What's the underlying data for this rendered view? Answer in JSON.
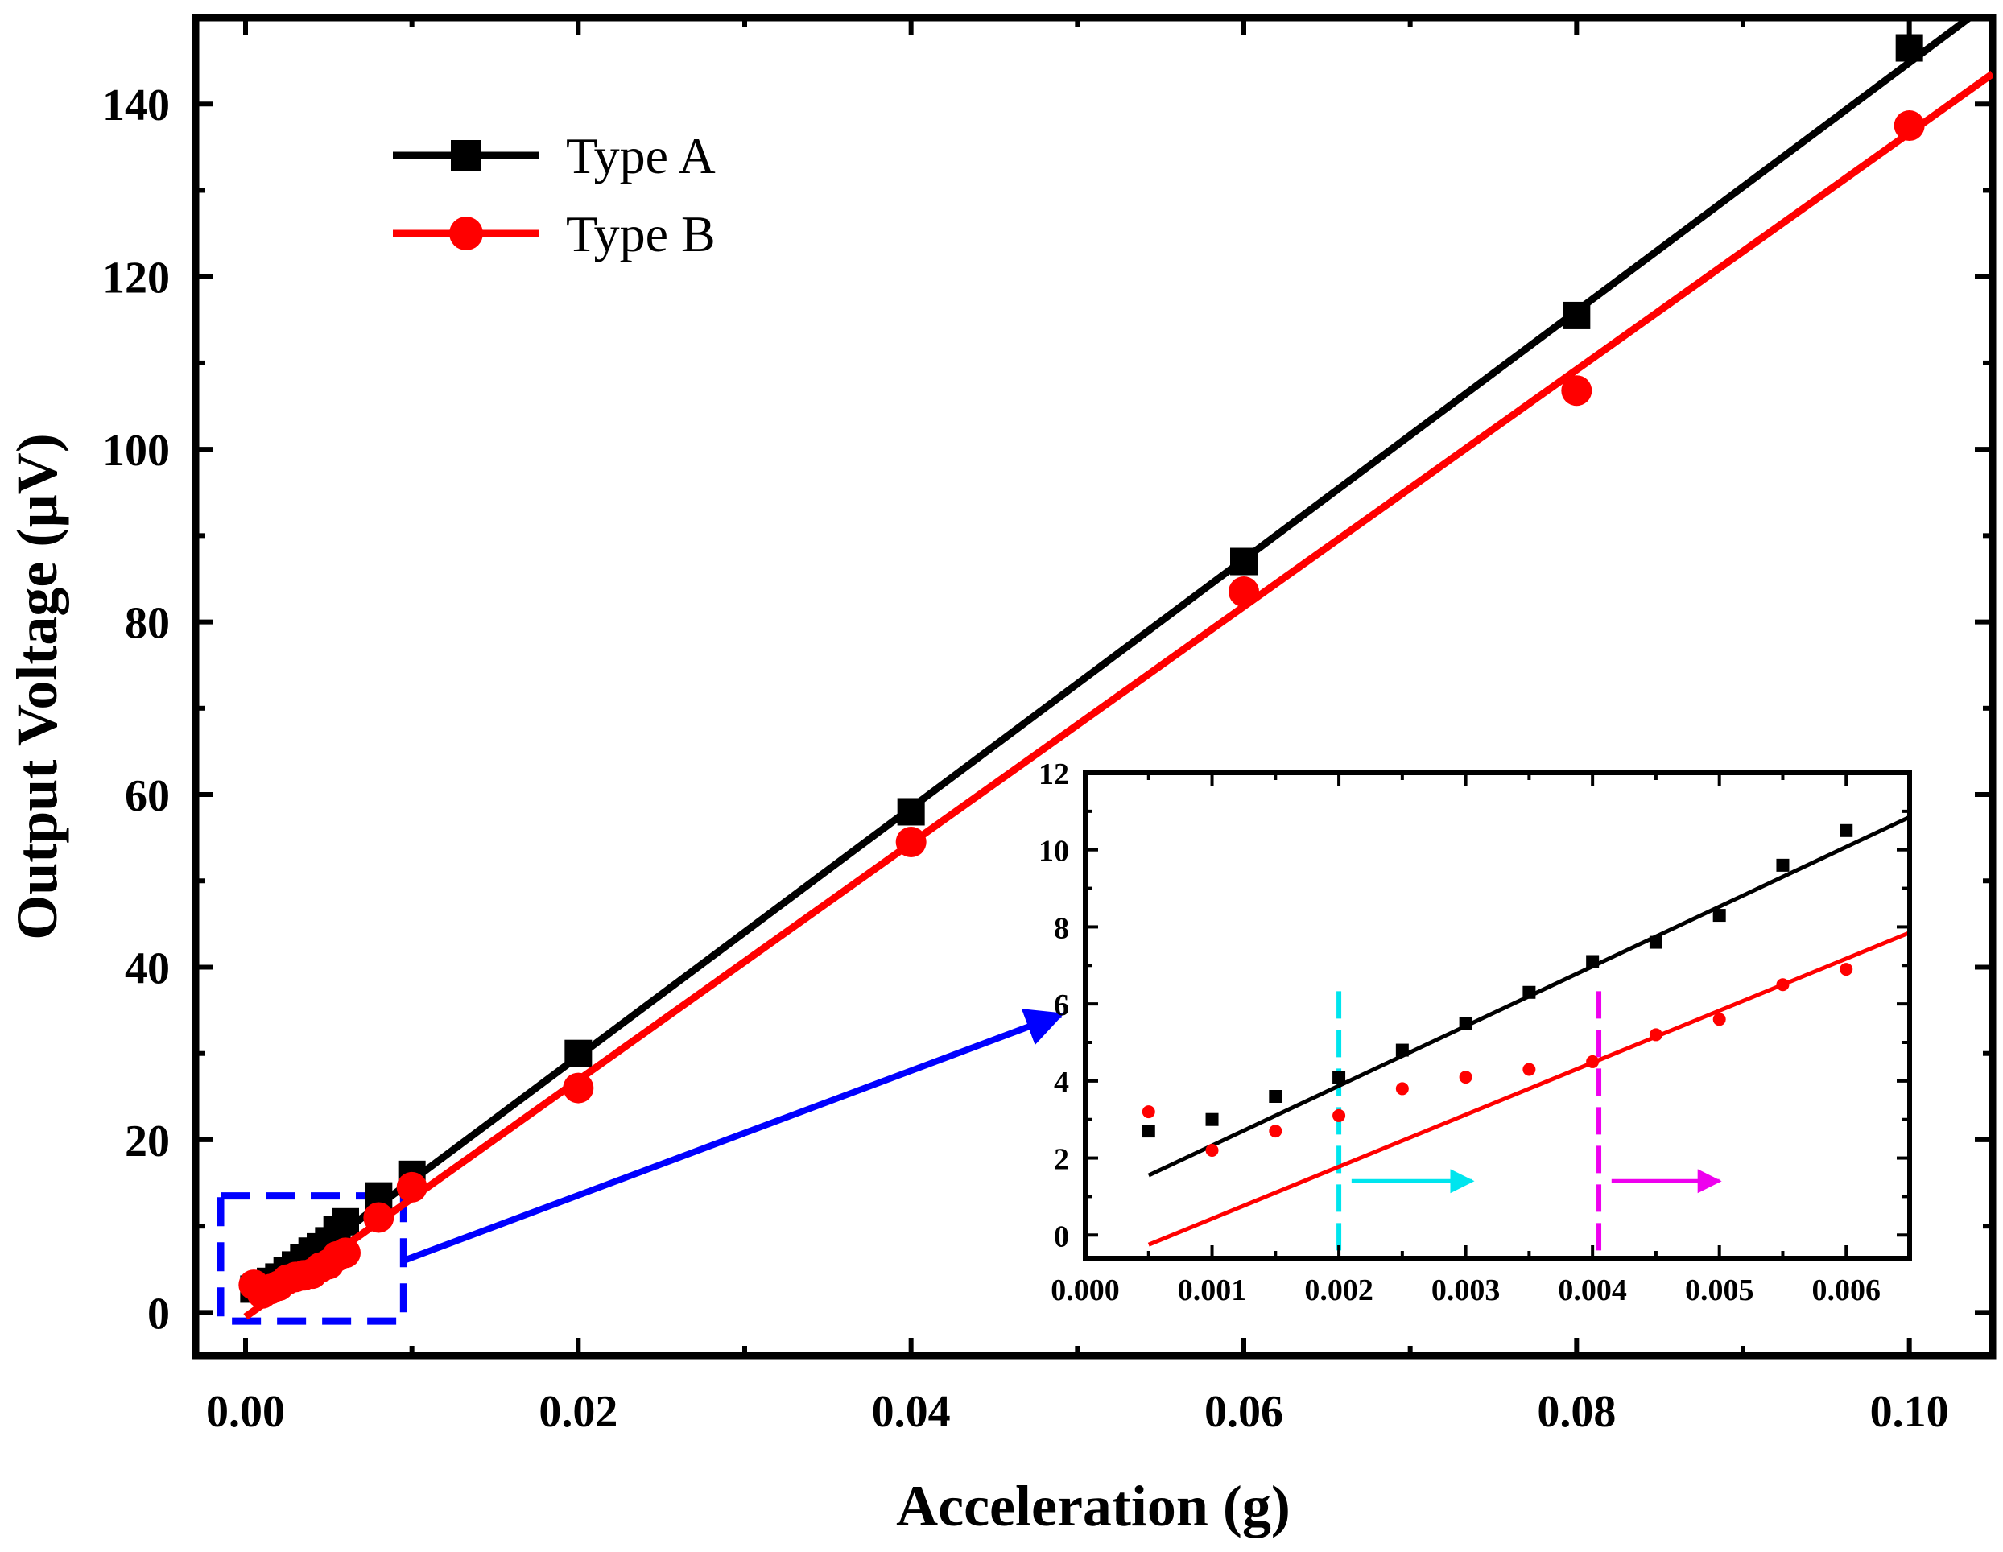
{
  "chart_data": [
    {
      "type": "line",
      "panel": "main",
      "xlabel": "Acceleration (g)",
      "ylabel": "Output Voltage (µV)",
      "xlim": [
        -0.003,
        0.105
      ],
      "ylim": [
        -5,
        150
      ],
      "xticks": [
        0.0,
        0.02,
        0.04,
        0.06,
        0.08,
        0.1
      ],
      "xtick_labels": [
        "0.00",
        "0.02",
        "0.04",
        "0.06",
        "0.08",
        "0.10"
      ],
      "yticks": [
        0,
        20,
        40,
        60,
        80,
        100,
        120,
        140
      ],
      "ytick_labels": [
        "0",
        "20",
        "40",
        "60",
        "80",
        "100",
        "120",
        "140"
      ],
      "legend_position": "top-left",
      "series": [
        {
          "name": "Type A",
          "color": "#000000",
          "marker": "square",
          "x": [
            0.0005,
            0.001,
            0.0015,
            0.002,
            0.0025,
            0.003,
            0.0035,
            0.004,
            0.0045,
            0.005,
            0.0055,
            0.006,
            0.008,
            0.01,
            0.02,
            0.04,
            0.06,
            0.08,
            0.1
          ],
          "y": [
            2.7,
            3.0,
            3.6,
            4.1,
            4.8,
            5.5,
            6.3,
            7.1,
            7.6,
            8.3,
            9.6,
            10.5,
            13.5,
            16.0,
            30.0,
            58.0,
            87.0,
            115.5,
            146.5
          ],
          "fit_line": [
            [
              0.0005,
              1.6
            ],
            [
              0.105,
              152.0
            ]
          ]
        },
        {
          "name": "Type B",
          "color": "#ff0000",
          "marker": "circle",
          "x": [
            0.0005,
            0.001,
            0.0015,
            0.002,
            0.0025,
            0.003,
            0.0035,
            0.004,
            0.0045,
            0.005,
            0.0055,
            0.006,
            0.008,
            0.01,
            0.02,
            0.04,
            0.06,
            0.08,
            0.1
          ],
          "y": [
            3.2,
            2.2,
            2.7,
            3.1,
            3.8,
            4.1,
            4.3,
            4.5,
            5.2,
            5.6,
            6.5,
            6.9,
            11.0,
            14.5,
            26.0,
            54.5,
            83.5,
            106.8,
            137.5
          ],
          "fit_line": [
            [
              0.0,
              -0.5
            ],
            [
              0.105,
              143.5
            ]
          ]
        }
      ],
      "annotations": [
        {
          "kind": "dashed-rectangle",
          "color": "#0000ff",
          "x_range": [
            -0.0015,
            0.0095
          ],
          "y_range": [
            -1,
            13.5
          ]
        },
        {
          "kind": "arrow",
          "color": "#0000ff",
          "from": [
            0.0095,
            6.0
          ],
          "to": [
            0.049,
            34.5
          ]
        }
      ]
    },
    {
      "type": "line",
      "panel": "inset",
      "xlabel": "",
      "ylabel": "",
      "xlim": [
        0.0,
        0.0065
      ],
      "ylim": [
        -0.6,
        12.0
      ],
      "xticks": [
        0.0,
        0.001,
        0.002,
        0.003,
        0.004,
        0.005,
        0.006
      ],
      "xtick_labels": [
        "0.000",
        "0.001",
        "0.002",
        "0.003",
        "0.004",
        "0.005",
        "0.006"
      ],
      "yticks": [
        0,
        2,
        4,
        6,
        8,
        10,
        12
      ],
      "ytick_labels": [
        "0",
        "2",
        "4",
        "6",
        "8",
        "10",
        "12"
      ],
      "series": [
        {
          "name": "Type A",
          "color": "#000000",
          "marker": "square",
          "x": [
            0.0005,
            0.001,
            0.0015,
            0.002,
            0.0025,
            0.003,
            0.0035,
            0.004,
            0.0045,
            0.005,
            0.0055,
            0.006
          ],
          "y": [
            2.7,
            3.0,
            3.6,
            4.1,
            4.8,
            5.5,
            6.3,
            7.1,
            7.6,
            8.3,
            9.6,
            10.5
          ],
          "fit_line": [
            [
              0.0005,
              1.55
            ],
            [
              0.0065,
              10.85
            ]
          ]
        },
        {
          "name": "Type B",
          "color": "#ff0000",
          "marker": "circle",
          "x": [
            0.0005,
            0.001,
            0.0015,
            0.002,
            0.0025,
            0.003,
            0.0035,
            0.004,
            0.0045,
            0.005,
            0.0055,
            0.006
          ],
          "y": [
            3.2,
            2.2,
            2.7,
            3.1,
            3.8,
            4.1,
            4.3,
            4.5,
            5.2,
            5.6,
            6.5,
            6.9
          ],
          "fit_line": [
            [
              0.0005,
              -0.25
            ],
            [
              0.0065,
              7.85
            ]
          ]
        }
      ],
      "annotations": [
        {
          "kind": "dashed-vline",
          "color": "#00e5ee",
          "x": 0.002,
          "y_range": [
            -0.4,
            6.4
          ]
        },
        {
          "kind": "dashed-vline",
          "color": "#ee00ee",
          "x": 0.00405,
          "y_range": [
            -0.4,
            6.4
          ]
        },
        {
          "kind": "arrow",
          "color": "#00e5ee",
          "from": [
            0.0021,
            1.4
          ],
          "to": [
            0.00305,
            1.4
          ]
        },
        {
          "kind": "arrow",
          "color": "#ee00ee",
          "from": [
            0.00415,
            1.4
          ],
          "to": [
            0.005,
            1.4
          ]
        }
      ]
    }
  ]
}
